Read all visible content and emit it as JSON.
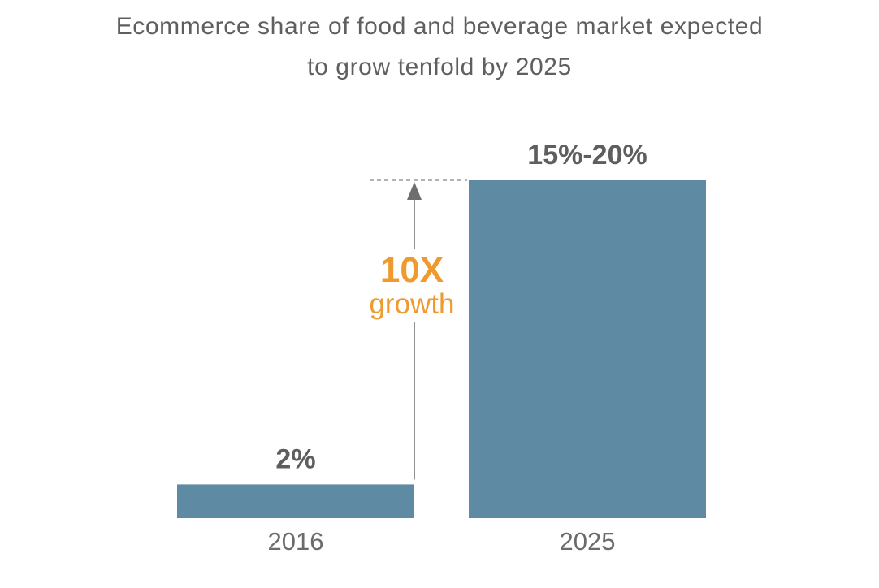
{
  "chart_data": {
    "type": "bar",
    "title_lines": [
      "Ecommerce share of food and beverage market expected",
      "to grow tenfold by 2025"
    ],
    "categories": [
      "2016",
      "2025"
    ],
    "values": [
      2,
      20
    ],
    "value_labels": [
      "2%",
      "15%-20%"
    ],
    "ylim": [
      0,
      20
    ],
    "grid": false,
    "legend": "none",
    "annotation": {
      "multiplier": "10X",
      "text": "growth"
    },
    "colors": {
      "bar": "#5f8aa3",
      "value_label": "#5e5e5e",
      "category_label": "#6b6b6b",
      "annotation": "#ef9a2e",
      "arrow": "#6e6e6e"
    }
  }
}
